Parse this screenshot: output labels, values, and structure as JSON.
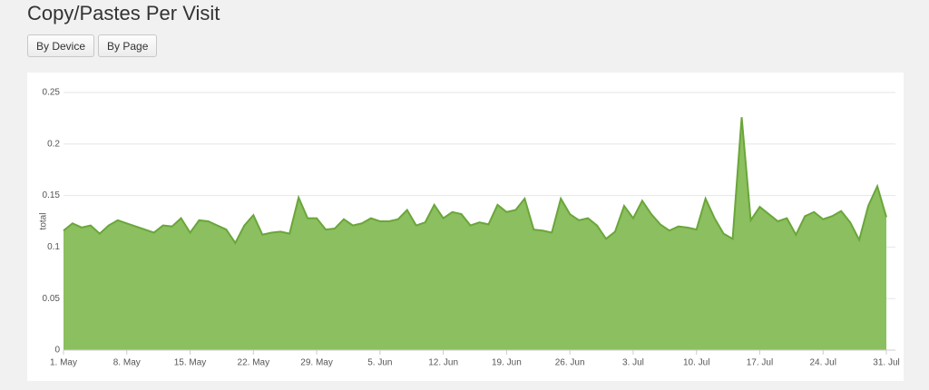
{
  "header": {
    "title": "Copy/Pastes Per Visit"
  },
  "buttons": [
    "By Device",
    "By Page"
  ],
  "chart_data": {
    "type": "area",
    "ylabel": "total",
    "categories": [
      "1. May",
      null,
      null,
      null,
      null,
      null,
      null,
      "8. May",
      null,
      null,
      null,
      null,
      null,
      null,
      "15. May",
      null,
      null,
      null,
      null,
      null,
      null,
      "22. May",
      null,
      null,
      null,
      null,
      null,
      null,
      "29. May",
      null,
      null,
      null,
      null,
      null,
      null,
      "5. Jun",
      null,
      null,
      null,
      null,
      null,
      null,
      "12. Jun",
      null,
      null,
      null,
      null,
      null,
      null,
      "19. Jun",
      null,
      null,
      null,
      null,
      null,
      null,
      "26. Jun",
      null,
      null,
      null,
      null,
      null,
      null,
      "3. Jul",
      null,
      null,
      null,
      null,
      null,
      null,
      "10. Jul",
      null,
      null,
      null,
      null,
      null,
      null,
      "17. Jul",
      null,
      null,
      null,
      null,
      null,
      null,
      "24. Jul",
      null,
      null,
      null,
      null,
      null,
      null,
      "31. Jul"
    ],
    "values": [
      0.116,
      0.123,
      0.119,
      0.121,
      0.113,
      0.121,
      0.126,
      0.123,
      0.12,
      0.117,
      0.114,
      0.121,
      0.12,
      0.128,
      0.114,
      0.126,
      0.125,
      0.121,
      0.117,
      0.104,
      0.121,
      0.131,
      0.112,
      0.114,
      0.115,
      0.113,
      0.148,
      0.128,
      0.128,
      0.117,
      0.118,
      0.127,
      0.121,
      0.123,
      0.128,
      0.125,
      0.125,
      0.127,
      0.136,
      0.121,
      0.124,
      0.141,
      0.128,
      0.134,
      0.132,
      0.121,
      0.124,
      0.122,
      0.141,
      0.134,
      0.136,
      0.147,
      0.117,
      0.116,
      0.114,
      0.147,
      0.132,
      0.126,
      0.128,
      0.121,
      0.108,
      0.115,
      0.14,
      0.128,
      0.145,
      0.132,
      0.122,
      0.116,
      0.12,
      0.119,
      0.117,
      0.147,
      0.128,
      0.113,
      0.108,
      0.226,
      0.126,
      0.139,
      0.132,
      0.125,
      0.128,
      0.112,
      0.13,
      0.134,
      0.127,
      0.13,
      0.135,
      0.124,
      0.107,
      0.14,
      0.159,
      0.129
    ],
    "color": "#8bbf5f",
    "ylim": [
      0,
      0.25
    ],
    "yticks": [
      0,
      0.05,
      0.1,
      0.15,
      0.2,
      0.25
    ],
    "grid": true
  }
}
